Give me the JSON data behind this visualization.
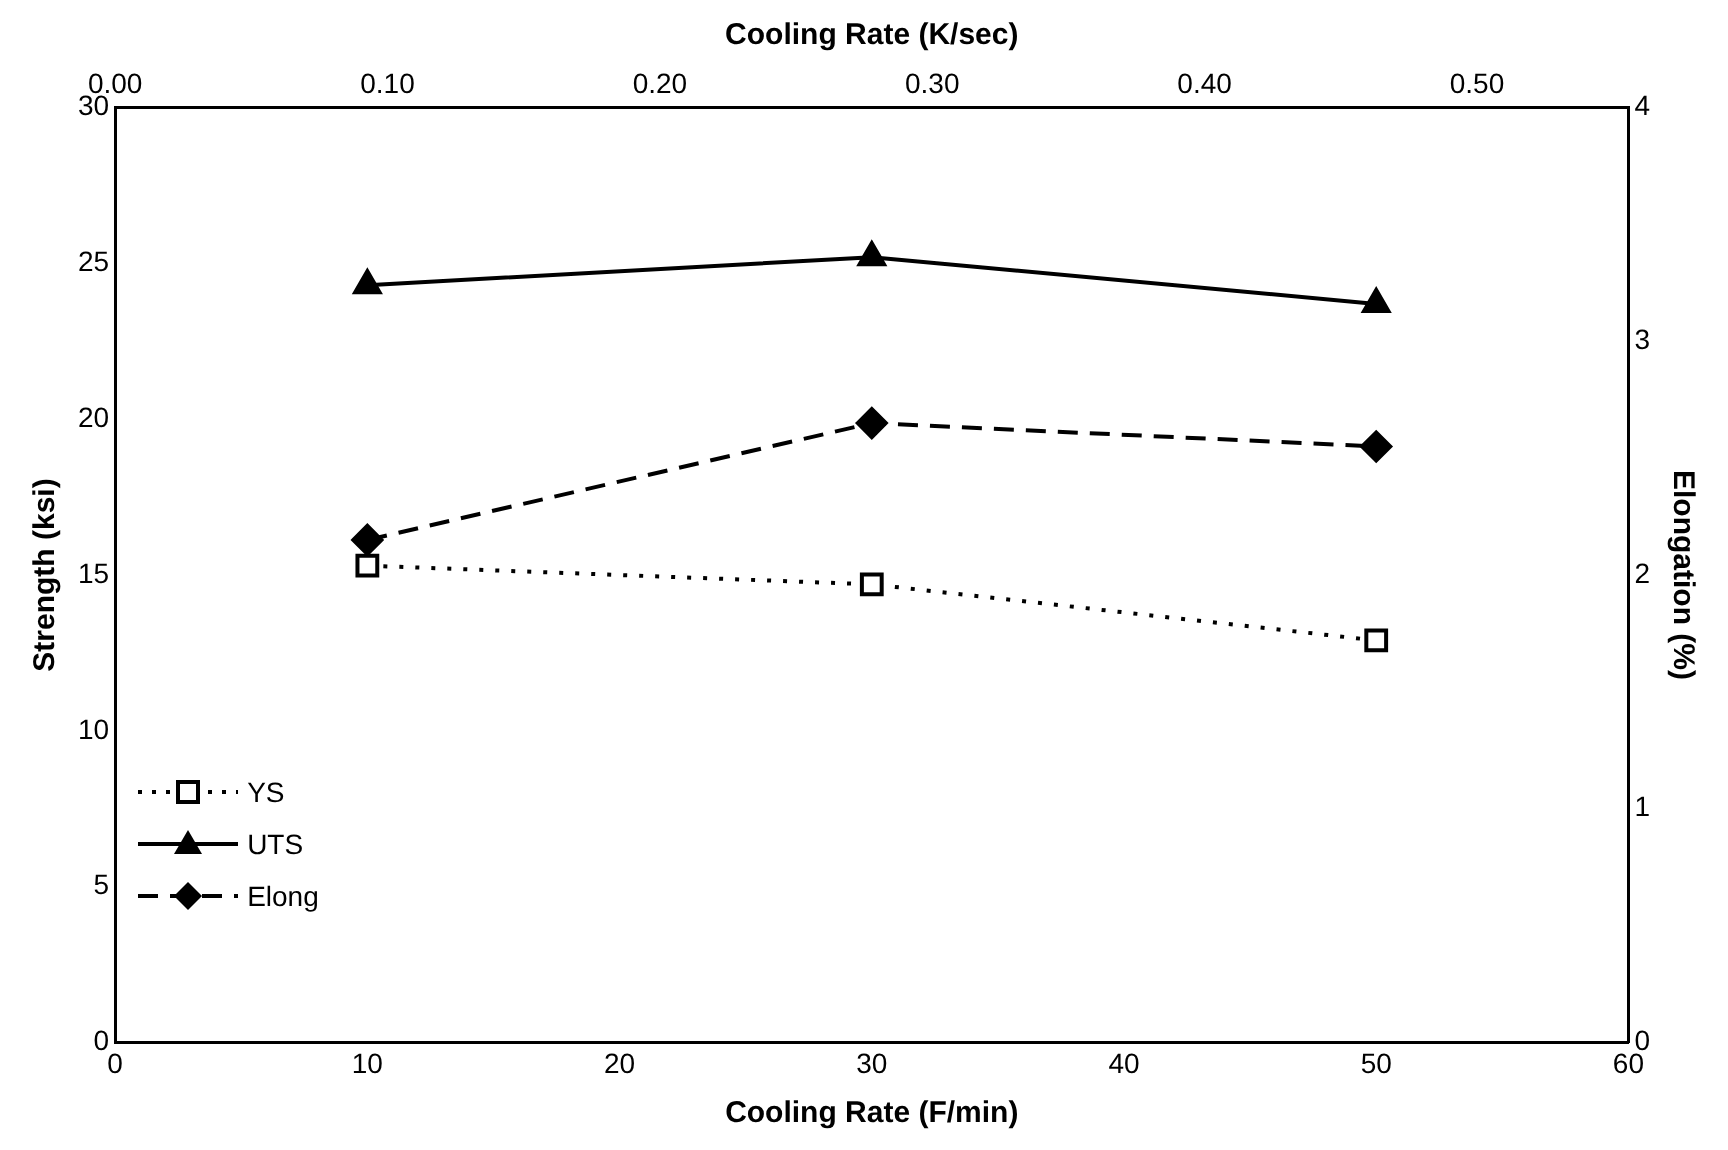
{
  "chart_data": {
    "type": "line",
    "xlabel": "Cooling Rate (F/min)",
    "ylabel": "Strength (ksi)",
    "y2label": "Elongation (%)",
    "x2label": "Cooling Rate (K/sec)",
    "x": [
      10,
      30,
      50
    ],
    "series": [
      {
        "name": "YS",
        "color": "#000000",
        "values": [
          15.3,
          14.7,
          12.9
        ],
        "marker": "square",
        "line_style": "dotted"
      },
      {
        "name": "UTS",
        "color": "#000000",
        "values": [
          24.3,
          25.2,
          23.7
        ],
        "marker": "triangle",
        "line_style": "solid"
      },
      {
        "name": "Elong",
        "color": "#000000",
        "values": [
          2.15,
          2.65,
          2.55
        ],
        "marker": "diamond",
        "line_style": "dashed",
        "axis": "y2"
      }
    ],
    "xlim": [
      0,
      60
    ],
    "xticks": [
      0,
      10,
      20,
      30,
      40,
      50,
      60
    ],
    "x2lim": [
      0,
      0.5556
    ],
    "x2ticks": [
      {
        "value": 0,
        "label": "0.00"
      },
      {
        "value": 0.1,
        "label": "0.10"
      },
      {
        "value": 0.2,
        "label": "0.20"
      },
      {
        "value": 0.3,
        "label": "0.30"
      },
      {
        "value": 0.4,
        "label": "0.40"
      },
      {
        "value": 0.5,
        "label": "0.50"
      }
    ],
    "ylim": [
      0,
      30
    ],
    "yticks": [
      0,
      5,
      10,
      15,
      20,
      25,
      30
    ],
    "y2lim": [
      0,
      4
    ],
    "y2ticks": [
      0,
      1,
      2,
      3,
      4
    ],
    "grid": false,
    "legend": "bottom left"
  }
}
